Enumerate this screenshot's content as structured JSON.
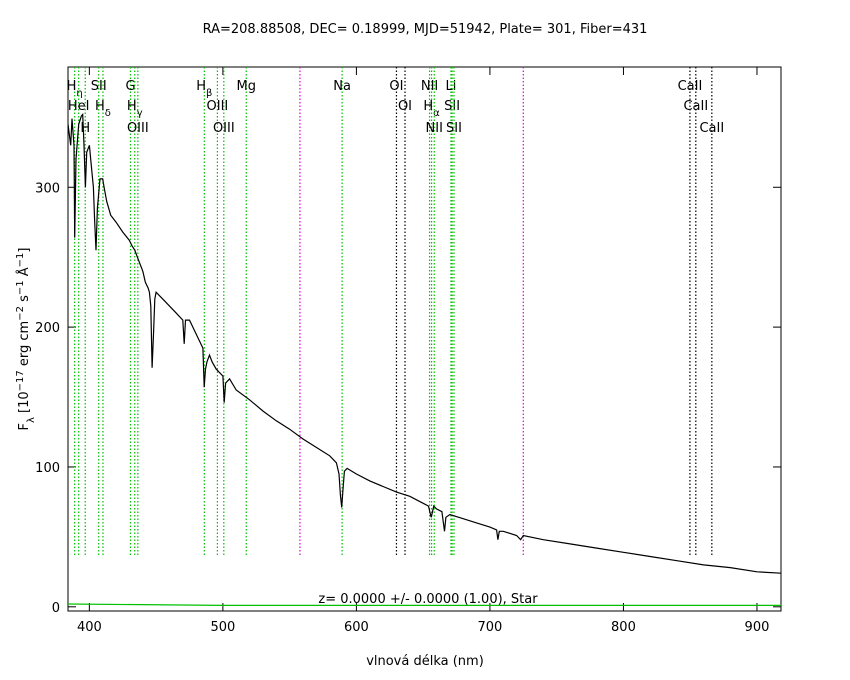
{
  "chart_data": {
    "type": "line",
    "title": "RA=208.88508, DEC= 0.18999, MJD=51942, Plate= 301, Fiber=431",
    "xlabel": "vlnová délka (nm)",
    "ylabel_parts": [
      {
        "text": "F"
      },
      {
        "text": "λ",
        "shift": "sub"
      },
      {
        "text": " [10"
      },
      {
        "text": "−17",
        "shift": "super"
      },
      {
        "text": " erg cm"
      },
      {
        "text": "−2",
        "shift": "super"
      },
      {
        "text": " s"
      },
      {
        "text": "−1",
        "shift": "super"
      },
      {
        "text": " Å"
      },
      {
        "text": "−1",
        "shift": "super"
      },
      {
        "text": "]"
      }
    ],
    "annotation": "z= 0.0000 +/- 0.0000 (1.00), Star",
    "xlim": [
      384,
      918
    ],
    "ylim": [
      -3,
      386
    ],
    "xticks": [
      400,
      500,
      600,
      700,
      800,
      900
    ],
    "yticks": [
      0,
      100,
      200,
      300
    ],
    "series": [
      {
        "color": "#000000",
        "x": [
          384,
          386,
          387,
          388.5,
          389,
          390,
          392,
          394,
          395,
          396,
          397,
          398,
          400,
          401,
          403,
          404,
          405,
          406,
          408,
          410,
          411,
          413,
          416,
          420,
          425,
          430,
          432,
          434,
          436,
          438,
          440,
          442,
          444,
          445,
          446,
          447,
          448,
          449,
          450,
          455,
          460,
          465,
          470,
          471,
          472,
          475,
          480,
          485,
          486,
          487,
          488,
          490,
          492,
          495,
          500,
          501,
          502,
          505,
          510,
          520,
          530,
          540,
          550,
          560,
          570,
          580,
          585,
          587,
          588,
          589,
          590,
          591,
          593,
          600,
          610,
          620,
          630,
          640,
          650,
          654,
          655,
          656,
          657,
          658,
          660,
          664,
          666,
          667,
          670,
          680,
          690,
          700,
          705,
          706,
          707,
          710,
          720,
          723,
          725,
          740,
          760,
          780,
          800,
          820,
          840,
          860,
          880,
          900,
          918
        ],
        "values": [
          345,
          330,
          349,
          330,
          264,
          320,
          345,
          351,
          352,
          330,
          300,
          325,
          330,
          320,
          300,
          275,
          255,
          285,
          306,
          306,
          300,
          290,
          280,
          275,
          268,
          262,
          258,
          255,
          250,
          245,
          240,
          232,
          228,
          225,
          215,
          171,
          195,
          220,
          225,
          220,
          215,
          210,
          205,
          188,
          205,
          205,
          195,
          185,
          157,
          170,
          175,
          180,
          175,
          170,
          165,
          146,
          160,
          163,
          155,
          148,
          140,
          133,
          127,
          120,
          114,
          108,
          103,
          95,
          80,
          71,
          85,
          97,
          99,
          95,
          90,
          86,
          82,
          79,
          74,
          72,
          68,
          64,
          68,
          72,
          70,
          68,
          54,
          64,
          66,
          63,
          60,
          57,
          55,
          48,
          54,
          54,
          51,
          48,
          51,
          48,
          45,
          42,
          39,
          36,
          33,
          30,
          28,
          25,
          24
        ]
      },
      {
        "color": "#00c000",
        "x": [
          384,
          500,
          700,
          918
        ],
        "values": [
          2,
          1,
          1,
          1
        ]
      }
    ],
    "lines": [
      {
        "wavelength": 389.0,
        "label": "H",
        "sub": "η",
        "color": "#00c000"
      },
      {
        "wavelength": 392.0,
        "label": "HeI",
        "color": "#00c000"
      },
      {
        "wavelength": 396.9,
        "label": "H",
        "color": "#00c000"
      },
      {
        "wavelength": 407.0,
        "label": "SII",
        "color": "#00c000"
      },
      {
        "wavelength": 410.2,
        "label": "H",
        "sub": "δ",
        "color": "#00c000"
      },
      {
        "wavelength": 430.8,
        "label": "G",
        "color": "#00c000"
      },
      {
        "wavelength": 434.0,
        "label": "H",
        "sub": "γ",
        "color": "#00c000"
      },
      {
        "wavelength": 436.3,
        "label": "OIII",
        "color": "#00c000"
      },
      {
        "wavelength": 486.1,
        "label": "H",
        "sub": "β",
        "color": "#00c000"
      },
      {
        "wavelength": 495.9,
        "label": "OIII",
        "color": "#00c000"
      },
      {
        "wavelength": 500.7,
        "label": "OIII",
        "color": "#00c000"
      },
      {
        "wavelength": 517.5,
        "label": "Mg",
        "color": "#00c000"
      },
      {
        "wavelength": 557.7,
        "color": "#e000e0"
      },
      {
        "wavelength": 589.3,
        "label": "Na",
        "color": "#00c000"
      },
      {
        "wavelength": 630.0,
        "label": "OI",
        "color": "#000000"
      },
      {
        "wavelength": 636.4,
        "label": "OI",
        "color": "#000000"
      },
      {
        "wavelength": 654.8,
        "label": "NII",
        "color": "#00c000"
      },
      {
        "wavelength": 656.3,
        "label": "H",
        "sub": "α",
        "color": "#00c000"
      },
      {
        "wavelength": 658.3,
        "label": "NII",
        "color": "#00c000"
      },
      {
        "wavelength": 670.8,
        "label": "Li",
        "color": "#00c000"
      },
      {
        "wavelength": 671.7,
        "label": "SII",
        "color": "#00c000"
      },
      {
        "wavelength": 673.1,
        "label": "SII",
        "color": "#00c000"
      },
      {
        "wavelength": 725.0,
        "color": "#e000e0"
      },
      {
        "wavelength": 849.8,
        "label": "CaII",
        "color": "#000000"
      },
      {
        "wavelength": 854.2,
        "label": "CaII",
        "color": "#000000"
      },
      {
        "wavelength": 866.2,
        "label": "CaII",
        "color": "#000000"
      }
    ]
  }
}
